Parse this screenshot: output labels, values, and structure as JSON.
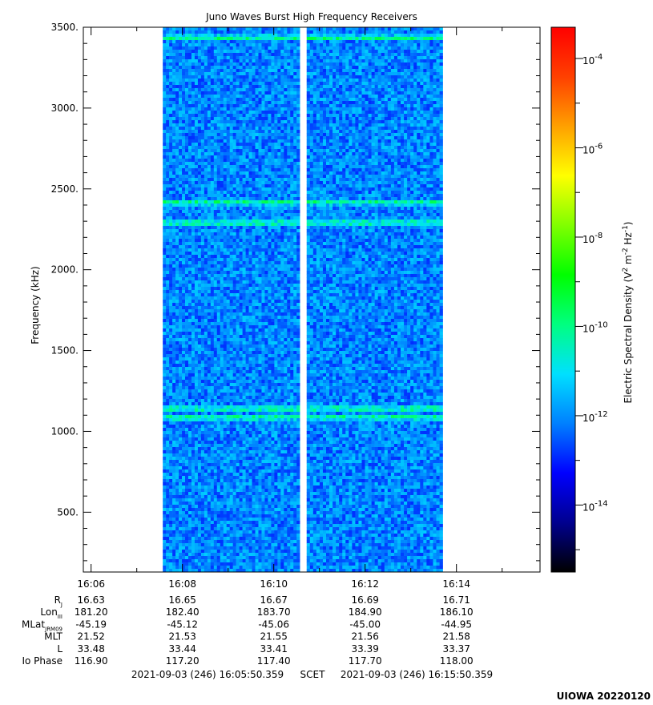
{
  "chart_data": {
    "type": "heatmap",
    "title": "Juno Waves Burst High Frequency Receivers",
    "ylabel": "Frequency (kHz)",
    "ylim": [
      130,
      3500
    ],
    "y_ticks": [
      "3500.",
      "3000.",
      "2500.",
      "2000.",
      "1500.",
      "1000.",
      "500."
    ],
    "y_tick_values": [
      3500,
      3000,
      2500,
      2000,
      1500,
      1000,
      500
    ],
    "x_tick_labels": [
      "16:06",
      "16:08",
      "16:10",
      "16:12",
      "16:14"
    ],
    "x_range_minutes": [
      5.83,
      15.83
    ],
    "x_tick_minutes": [
      6,
      8,
      10,
      12,
      14
    ],
    "data_segments_minutes": [
      [
        7.57,
        10.57
      ],
      [
        10.72,
        13.7
      ]
    ],
    "band_frequencies_khz": [
      3435,
      2415,
      2290,
      1140,
      1085
    ],
    "colorbar": {
      "label": "Electric Spectral Density (V2 m-2 Hz-1)",
      "label_parts": {
        "base": "Electric Spectral Density (V",
        "sup1": "2",
        "mid": " m",
        "sup2": "-2",
        "mid2": " Hz",
        "sup3": "-1",
        "end": ")"
      },
      "scale": "log",
      "range_exp": [
        -15.5,
        -3.3
      ],
      "tick_exponents": [
        -4,
        -6,
        -8,
        -10,
        -12,
        -14
      ],
      "colors": [
        "#000000",
        "#00008f",
        "#0000ff",
        "#0080ff",
        "#00e0ff",
        "#00ff80",
        "#00ff00",
        "#80ff00",
        "#ffff00",
        "#ffa000",
        "#ff4000",
        "#ff0000"
      ]
    },
    "background_level_exp": -12
  },
  "ephemeris": {
    "rows": [
      {
        "label": "R",
        "sub": "J",
        "values": [
          "16.63",
          "16.65",
          "16.67",
          "16.69",
          "16.71"
        ]
      },
      {
        "label": "Lon",
        "sub": "III",
        "values": [
          "181.20",
          "182.40",
          "183.70",
          "184.90",
          "186.10"
        ]
      },
      {
        "label": "MLat",
        "sub": "JRM09",
        "values": [
          "-45.19",
          "-45.12",
          "-45.06",
          "-45.00",
          "-44.95"
        ]
      },
      {
        "label": "MLT",
        "sub": "",
        "values": [
          "21.52",
          "21.53",
          "21.55",
          "21.56",
          "21.58"
        ]
      },
      {
        "label": "L",
        "sub": "",
        "values": [
          "33.48",
          "33.44",
          "33.41",
          "33.39",
          "33.37"
        ]
      },
      {
        "label": "Io Phase",
        "sub": "",
        "values": [
          "116.90",
          "117.20",
          "117.40",
          "117.70",
          "118.00"
        ]
      }
    ]
  },
  "time_range": {
    "start": "2021-09-03 (246) 16:05:50.359",
    "mid": "SCET",
    "end": "2021-09-03 (246) 16:15:50.359"
  },
  "footer_stamp": "UIOWA 20220120"
}
